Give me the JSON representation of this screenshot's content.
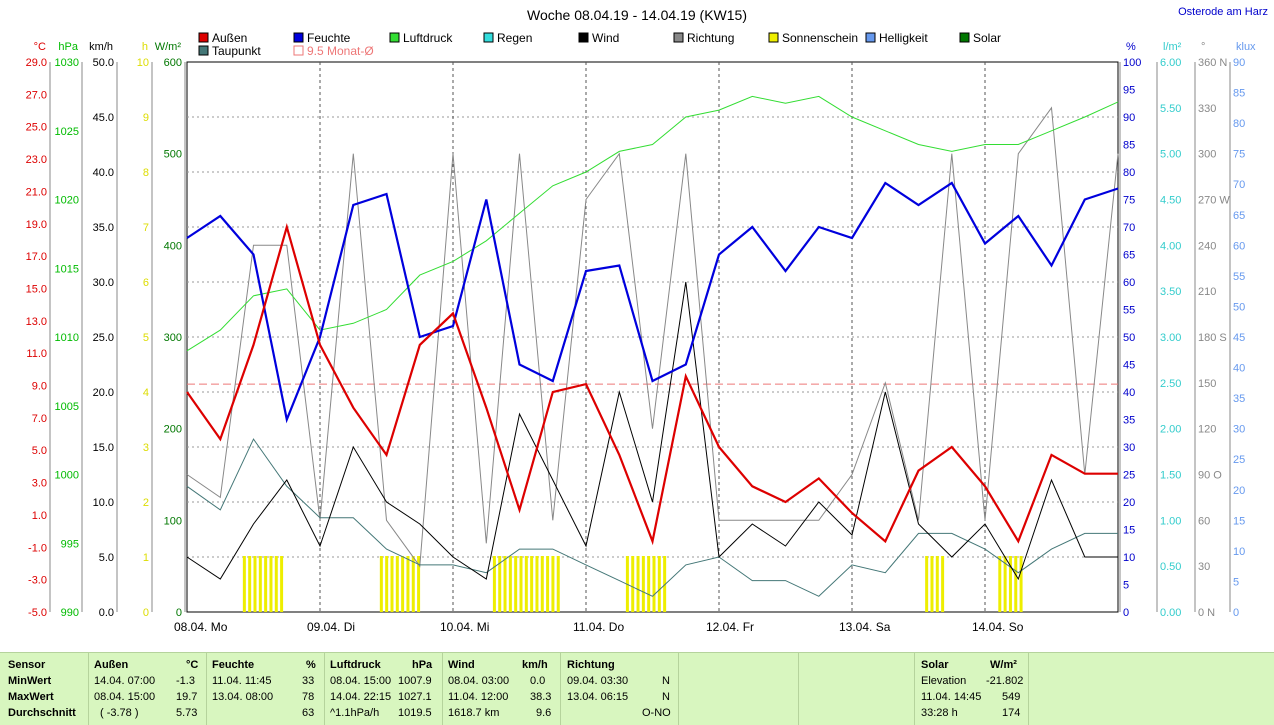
{
  "title": "Woche 08.04.19 - 14.04.19 (KW15)",
  "location": "Osterode am Harz",
  "legend": [
    {
      "name": "Außen",
      "color": "#dd0000"
    },
    {
      "name": "Feuchte",
      "color": "#0000dd"
    },
    {
      "name": "Luftdruck",
      "color": "#33dd33"
    },
    {
      "name": "Regen",
      "color": "#33dddd"
    },
    {
      "name": "Wind",
      "color": "#000000"
    },
    {
      "name": "Richtung",
      "color": "#888888"
    },
    {
      "name": "Sonnenschein",
      "color": "#eeee00"
    },
    {
      "name": "Helligkeit",
      "color": "#6699ee"
    },
    {
      "name": "Solar",
      "color": "#007700"
    },
    {
      "name": "Taupunkt",
      "color": "#447777"
    },
    {
      "name": "9.5 Monat-Ø",
      "color": "#ee7777",
      "outline": true
    }
  ],
  "left_axes": [
    {
      "unit": "°C",
      "color": "#dd0000",
      "ticks": [
        "29.0",
        "27.0",
        "25.0",
        "23.0",
        "21.0",
        "19.0",
        "17.0",
        "15.0",
        "13.0",
        "11.0",
        "9.0",
        "7.0",
        "5.0",
        "3.0",
        "1.0",
        "-1.0",
        "-3.0",
        "-5.0"
      ]
    },
    {
      "unit": "hPa",
      "color": "#00bb00",
      "ticks": [
        "1030",
        "1025",
        "1020",
        "1015",
        "1010",
        "1005",
        "1000",
        "995",
        "990"
      ]
    },
    {
      "unit": "km/h",
      "color": "#000000",
      "ticks": [
        "50.0",
        "45.0",
        "40.0",
        "35.0",
        "30.0",
        "25.0",
        "20.0",
        "15.0",
        "10.0",
        "5.0",
        "0.0"
      ]
    },
    {
      "unit": "h",
      "color": "#dddd00",
      "ticks": [
        "10",
        "9",
        "8",
        "7",
        "6",
        "5",
        "4",
        "3",
        "2",
        "1",
        "0"
      ]
    },
    {
      "unit": "W/m²",
      "color": "#007700",
      "ticks": [
        "600",
        "500",
        "400",
        "300",
        "200",
        "100",
        "0"
      ]
    }
  ],
  "right_axes": [
    {
      "unit": "%",
      "color": "#0000cc",
      "ticks": [
        "100",
        "95",
        "90",
        "85",
        "80",
        "75",
        "70",
        "65",
        "60",
        "55",
        "50",
        "45",
        "40",
        "35",
        "30",
        "25",
        "20",
        "15",
        "10",
        "5",
        "0"
      ]
    },
    {
      "unit": "l/m²",
      "color": "#33cccc",
      "ticks": [
        "6.00",
        "5.50",
        "5.00",
        "4.50",
        "4.00",
        "3.50",
        "3.00",
        "2.50",
        "2.00",
        "1.50",
        "1.00",
        "0.50",
        "0.00"
      ]
    },
    {
      "unit": "°",
      "color": "#888888",
      "ticks": [
        "360 N",
        "330",
        "300",
        "270 W",
        "240",
        "210",
        "180 S",
        "150",
        "120",
        "90 O",
        "60",
        "30",
        "0 N"
      ]
    },
    {
      "unit": "klux",
      "color": "#6699ee",
      "ticks": [
        "90",
        "85",
        "80",
        "75",
        "70",
        "65",
        "60",
        "55",
        "50",
        "45",
        "40",
        "35",
        "30",
        "25",
        "20",
        "15",
        "10",
        "5",
        "0"
      ]
    }
  ],
  "x_labels": [
    "08.04.  Mo",
    "09.04.  Di",
    "10.04.  Mi",
    "11.04.  Do",
    "12.04.  Fr",
    "13.04.  Sa",
    "14.04.  So"
  ],
  "chart_data": {
    "type": "line",
    "x": [
      0,
      0.25,
      0.5,
      0.75,
      1,
      1.25,
      1.5,
      1.75,
      2,
      2.25,
      2.5,
      2.75,
      3,
      3.25,
      3.5,
      3.75,
      4,
      4.25,
      4.5,
      4.75,
      5,
      5.25,
      5.5,
      5.75,
      6,
      6.25,
      6.5,
      6.75,
      7
    ],
    "xlabel": "",
    "x_categories": [
      "08.04. Mo",
      "09.04. Di",
      "10.04. Mi",
      "11.04. Do",
      "12.04. Fr",
      "13.04. Sa",
      "14.04. So"
    ],
    "ylim": [
      -5,
      30
    ],
    "reference_line": {
      "name": "9.5 Monat-Ø",
      "value": 9.5
    },
    "series": [
      {
        "name": "Außen",
        "unit": "°C",
        "values": [
          9,
          6,
          12,
          19.5,
          12,
          8,
          5,
          12,
          14,
          8,
          1.5,
          9,
          9.5,
          5,
          -0.5,
          10,
          5.5,
          3,
          2,
          3.5,
          1.3,
          -0.5,
          4,
          5.5,
          3,
          -0.5,
          5,
          3.8,
          3.8
        ]
      },
      {
        "name": "Feuchte",
        "unit": "%",
        "values": [
          68,
          72,
          65,
          35,
          50,
          74,
          76,
          50,
          52,
          75,
          45,
          42,
          62,
          63,
          42,
          45,
          65,
          70,
          62,
          70,
          68,
          78,
          74,
          78,
          67,
          72,
          63,
          75,
          77
        ]
      },
      {
        "name": "Luftdruck",
        "unit": "hPa",
        "values": [
          1009,
          1010.5,
          1013,
          1013.5,
          1010.5,
          1011,
          1012,
          1014.5,
          1015.5,
          1017,
          1019,
          1021,
          1022,
          1023.5,
          1024,
          1026,
          1026.5,
          1027.5,
          1027,
          1027.5,
          1026,
          1025,
          1024,
          1023.5,
          1024,
          1024,
          1025,
          1026,
          1027.1
        ]
      },
      {
        "name": "Wind",
        "unit": "km/h",
        "values": [
          5,
          3,
          8,
          12,
          6,
          15,
          10,
          8,
          5,
          3,
          18,
          12,
          6,
          20,
          10,
          30,
          5,
          8,
          6,
          10,
          7,
          20,
          8,
          5,
          8,
          3,
          12,
          5,
          5
        ]
      },
      {
        "name": "Richtung",
        "unit": "°",
        "values": [
          90,
          75,
          240,
          240,
          60,
          300,
          60,
          30,
          300,
          45,
          300,
          60,
          270,
          300,
          120,
          300,
          60,
          60,
          60,
          60,
          90,
          150,
          60,
          300,
          60,
          300,
          330,
          90,
          300
        ]
      },
      {
        "name": "Taupunkt",
        "unit": "°C",
        "values": [
          3,
          1.5,
          6,
          3,
          1,
          1,
          -1,
          -2,
          -2,
          -2.5,
          -1,
          -1,
          -2,
          -3,
          -4,
          -2,
          -1.5,
          -3,
          -3,
          -4,
          -2,
          -2.5,
          0,
          0,
          -1,
          -2.5,
          -1,
          0,
          0
        ]
      }
    ]
  },
  "table": {
    "sensor": {
      "title": "Sensor",
      "rows": [
        "MinWert",
        "MaxWert",
        "Durchschnitt"
      ]
    },
    "aussen": {
      "title": "Außen",
      "unit": "°C",
      "time": [
        "14.04.  07:00",
        "08.04.  15:00",
        "( -3.78 )"
      ],
      "val": [
        "-1.3",
        "19.7",
        "5.73"
      ]
    },
    "feuchte": {
      "title": "Feuchte",
      "unit": "%",
      "time": [
        "11.04.  11:45",
        "13.04.  08:00",
        ""
      ],
      "val": [
        "33",
        "78",
        "63"
      ]
    },
    "luftdruck": {
      "title": "Luftdruck",
      "unit": "hPa",
      "time": [
        "08.04.  15:00",
        "14.04.  22:15",
        "^1.1hPa/h"
      ],
      "val": [
        "1007.9",
        "1027.1",
        "1019.5"
      ]
    },
    "wind": {
      "title": "Wind",
      "unit": "km/h",
      "time": [
        "08.04.  03:00",
        "11.04.  12:00",
        "1618.7 km"
      ],
      "val": [
        "0.0",
        "38.3",
        "9.6"
      ]
    },
    "richtung": {
      "title": "Richtung",
      "time": [
        "09.04.  03:30",
        "13.04.  06:15",
        ""
      ],
      "val": [
        "N",
        "N",
        "O-NO"
      ]
    },
    "solar": {
      "title": "Solar",
      "unit": "W/m²",
      "time": [
        "Elevation",
        "11.04.  14:45",
        "33:28 h"
      ],
      "val": [
        "-21.802",
        "549",
        "174"
      ]
    }
  }
}
